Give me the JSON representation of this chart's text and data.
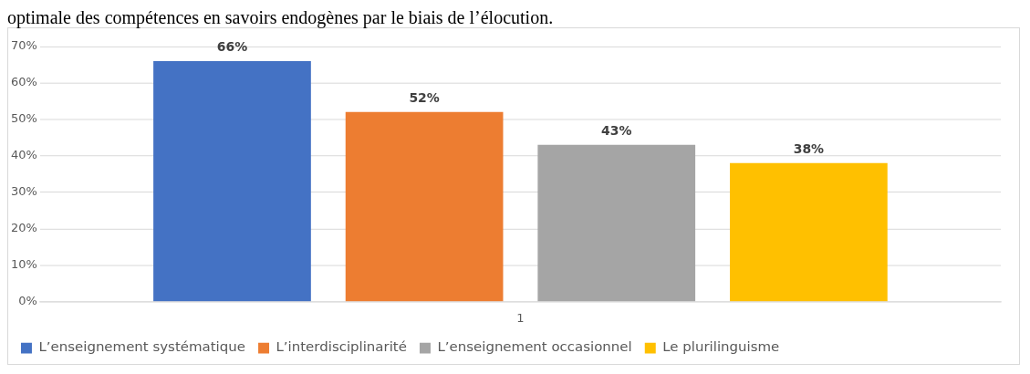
{
  "chart_data": {
    "type": "bar",
    "title": "optimale des compétences en savoirs endogènes par le biais de l’élocution.",
    "categories": [
      "1"
    ],
    "series": [
      {
        "name": "L’enseignement systématique",
        "color": "#4472c4",
        "values": [
          66
        ],
        "value_labels": [
          "66%"
        ]
      },
      {
        "name": "L’interdisciplinarité",
        "color": "#ed7d31",
        "values": [
          52
        ],
        "value_labels": [
          "52%"
        ]
      },
      {
        "name": "L’enseignement occasionnel",
        "color": "#a5a5a5",
        "values": [
          43
        ],
        "value_labels": [
          "43%"
        ]
      },
      {
        "name": "Le plurilinguisme",
        "color": "#ffc000",
        "values": [
          38
        ],
        "value_labels": [
          "38%"
        ]
      }
    ],
    "ylim": [
      0,
      70
    ],
    "yticks": [
      {
        "value": 0,
        "label": "0%"
      },
      {
        "value": 10,
        "label": "10%"
      },
      {
        "value": 20,
        "label": "20%"
      },
      {
        "value": 30,
        "label": "30%"
      },
      {
        "value": 40,
        "label": "40%"
      },
      {
        "value": 50,
        "label": "50%"
      },
      {
        "value": 60,
        "label": "60%"
      },
      {
        "value": 70,
        "label": "70%"
      }
    ],
    "grid": "y",
    "legend": "bottom"
  }
}
